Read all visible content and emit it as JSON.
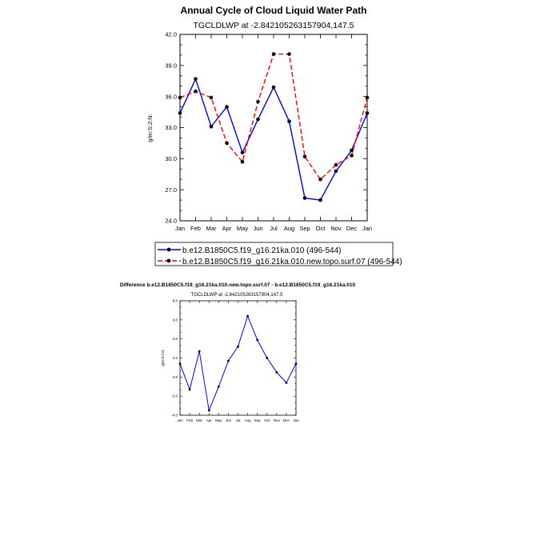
{
  "colors": {
    "series1": "#0000ff",
    "series2": "#ff0000",
    "marker": "#000000",
    "diff": "#0000ff"
  },
  "chart_data": [
    {
      "type": "line",
      "title": "Annual Cycle of Cloud Liquid Water Path",
      "subtitle": "TGCLDLWP at -2.842105263157904,147.5",
      "xlabel": "",
      "ylabel": "g/m:S:2:N:",
      "categories": [
        "Jan",
        "Feb",
        "Mar",
        "Apr",
        "May",
        "Jun",
        "Jul",
        "Aug",
        "Sep",
        "Oct",
        "Nov",
        "Dec",
        "Jan"
      ],
      "ylim": [
        24,
        42
      ],
      "yticks": [
        "24.0",
        "27.0",
        "30.0",
        "33.0",
        "36.0",
        "39.0",
        "42.0"
      ],
      "legend_position": "below",
      "series": [
        {
          "name": "b.e12.B1850C5.f19_g16.21ka.010 (496-544)",
          "color": "#0000ff",
          "dash": "solid",
          "values": [
            34.4,
            37.7,
            33.1,
            35.0,
            30.6,
            33.8,
            36.9,
            33.6,
            26.2,
            26.0,
            28.8,
            30.8,
            34.4
          ]
        },
        {
          "name": "b.e12.B1850C5.f19_g16.21ka.010.new.topo.surf.07 (496-544)",
          "color": "#ff0000",
          "dash": "dashed",
          "values": [
            35.9,
            36.5,
            35.9,
            31.5,
            29.7,
            35.5,
            40.1,
            40.1,
            30.2,
            28.0,
            29.4,
            30.3,
            35.9
          ]
        }
      ],
      "grid": false
    },
    {
      "type": "line",
      "title": "Difference b.e12.B1850C5.f19_g16.21ka.010.new.topo.surf.07 - b.e12.B1850C5.f19_g16.21ka.010",
      "subtitle": "TGCLDLWP at -2.842105263157904,147.5",
      "xlabel": "",
      "ylabel": "g/m:S:2:N:",
      "categories": [
        "Jan",
        "Feb",
        "Mar",
        "Apr",
        "May",
        "Jun",
        "Jul",
        "Aug",
        "Sep",
        "Oct",
        "Nov",
        "Dec",
        "Jan"
      ],
      "ylim": [
        -4,
        8
      ],
      "yticks": [
        "-4.0",
        "-2.0",
        "0.0",
        "2.0",
        "4.0",
        "6.0",
        "8.0"
      ],
      "series": [
        {
          "color": "#0000ff",
          "values": [
            1.4,
            -1.3,
            2.7,
            -3.5,
            -1.0,
            1.7,
            3.2,
            6.4,
            3.9,
            2.0,
            0.5,
            -0.6,
            1.4
          ]
        }
      ],
      "grid": false
    }
  ]
}
